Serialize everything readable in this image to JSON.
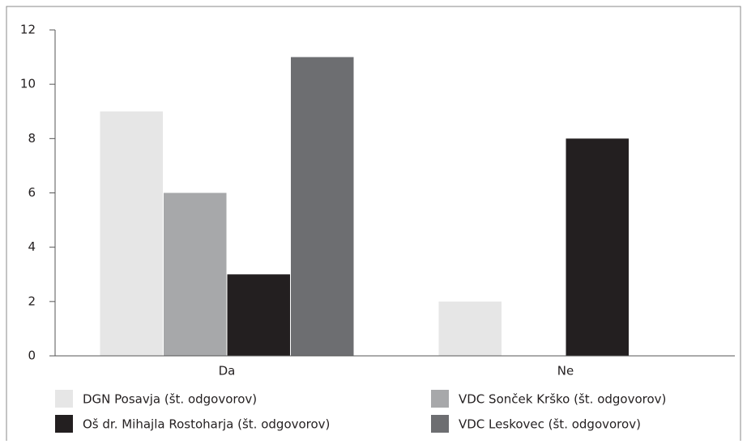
{
  "chart_data": {
    "type": "bar",
    "categories": [
      "Da",
      "Ne"
    ],
    "series": [
      {
        "name": "DGN Posavja (št. odgovorov)",
        "color": "#e6e6e6",
        "values": [
          9,
          2
        ]
      },
      {
        "name": "VDC Sonček Krško (št. odgovorov)",
        "color": "#a7a8aa",
        "values": [
          6,
          0
        ]
      },
      {
        "name": "Oš dr. Mihajla Rostoharja (št. odgovorov)",
        "color": "#231f20",
        "values": [
          3,
          8
        ]
      },
      {
        "name": "VDC Leskovec (št. odgovorov)",
        "color": "#6d6e71",
        "values": [
          11,
          0
        ]
      }
    ],
    "ylim": [
      0,
      12
    ],
    "yticks": [
      0,
      2,
      4,
      6,
      8,
      10,
      12
    ],
    "grid": false,
    "legend": "bottom"
  }
}
